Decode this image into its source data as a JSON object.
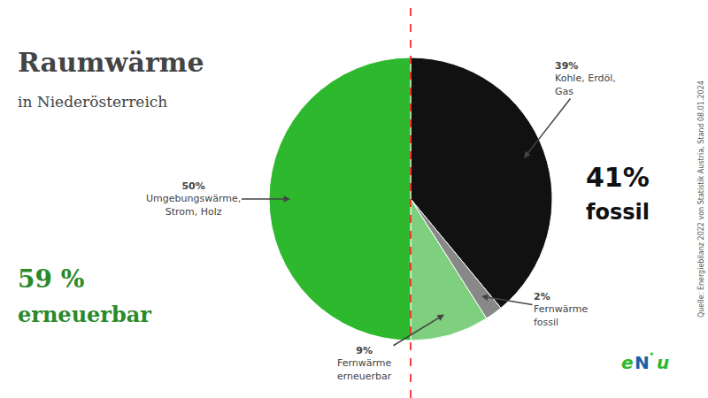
{
  "chart_data": {
    "type": "pie",
    "title": "Raumwärme",
    "subtitle": "in Niederösterreich",
    "categories": [
      "Kohle, Erdöl,\nGas",
      "Fernwärme\nfossil",
      "Fernwärme\nerneuerbar",
      "Umgebungswärme,\nStrom, Holz"
    ],
    "values": [
      39,
      2,
      9,
      50
    ],
    "value_labels": [
      "39%",
      "2%",
      "9%",
      "50%"
    ],
    "colors": [
      "#111111",
      "#888888",
      "#7ecf7e",
      "#2db82d"
    ],
    "data_labels": true,
    "annotations": [
      {
        "text": "59 %",
        "color": "#2a8a2a"
      },
      {
        "text": "erneuerbar",
        "color": "#2a8a2a"
      },
      {
        "text": "41%",
        "color": "#111111"
      },
      {
        "text": "fossil",
        "color": "#111111"
      },
      {
        "text": "Quelle: Energiebilanz 2022 von Statistik Austria, Stand 08.01.2024",
        "color": "#555555"
      },
      {
        "text": "e",
        "color": "#2db82d"
      },
      {
        "text": "N",
        "color": "#1a5fa8"
      },
      {
        "text": "✦",
        "color": "#2db82d"
      },
      {
        "text": "u",
        "color": "#2db82d"
      }
    ]
  }
}
